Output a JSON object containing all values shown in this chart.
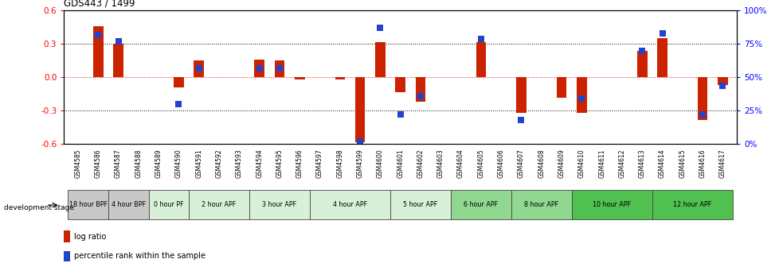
{
  "title": "GDS443 / 1499",
  "samples": [
    "GSM4585",
    "GSM4586",
    "GSM4587",
    "GSM4588",
    "GSM4589",
    "GSM4590",
    "GSM4591",
    "GSM4592",
    "GSM4593",
    "GSM4594",
    "GSM4595",
    "GSM4596",
    "GSM4597",
    "GSM4598",
    "GSM4599",
    "GSM4600",
    "GSM4601",
    "GSM4602",
    "GSM4603",
    "GSM4604",
    "GSM4605",
    "GSM4606",
    "GSM4607",
    "GSM4608",
    "GSM4609",
    "GSM4610",
    "GSM4611",
    "GSM4612",
    "GSM4613",
    "GSM4614",
    "GSM4615",
    "GSM4616",
    "GSM4617"
  ],
  "log_ratio": [
    0.0,
    0.46,
    0.3,
    0.0,
    0.0,
    -0.09,
    0.15,
    0.0,
    0.0,
    0.16,
    0.15,
    -0.02,
    0.0,
    -0.02,
    -0.58,
    0.32,
    -0.13,
    -0.22,
    0.0,
    0.0,
    0.32,
    0.0,
    -0.32,
    0.0,
    -0.18,
    -0.32,
    0.0,
    0.0,
    0.24,
    0.35,
    0.0,
    -0.38,
    -0.07
  ],
  "percentile": [
    null,
    82,
    77,
    null,
    null,
    30,
    57,
    null,
    null,
    57,
    57,
    null,
    null,
    null,
    2,
    87,
    22,
    36,
    null,
    null,
    79,
    null,
    18,
    null,
    null,
    34,
    null,
    null,
    70,
    83,
    null,
    22,
    44
  ],
  "stages": [
    {
      "label": "18 hour BPF",
      "start": 0,
      "end": 2,
      "color": "#c8c8c8"
    },
    {
      "label": "4 hour BPF",
      "start": 2,
      "end": 4,
      "color": "#c8c8c8"
    },
    {
      "label": "0 hour PF",
      "start": 4,
      "end": 6,
      "color": "#d8f0d8"
    },
    {
      "label": "2 hour APF",
      "start": 6,
      "end": 9,
      "color": "#d8f0d8"
    },
    {
      "label": "3 hour APF",
      "start": 9,
      "end": 12,
      "color": "#d8f0d8"
    },
    {
      "label": "4 hour APF",
      "start": 12,
      "end": 16,
      "color": "#d8f0d8"
    },
    {
      "label": "5 hour APF",
      "start": 16,
      "end": 19,
      "color": "#d8f0d8"
    },
    {
      "label": "6 hour APF",
      "start": 19,
      "end": 22,
      "color": "#90d890"
    },
    {
      "label": "8 hour APF",
      "start": 22,
      "end": 25,
      "color": "#90d890"
    },
    {
      "label": "10 hour APF",
      "start": 25,
      "end": 29,
      "color": "#50c050"
    },
    {
      "label": "12 hour APF",
      "start": 29,
      "end": 33,
      "color": "#50c050"
    }
  ],
  "bar_color": "#cc2200",
  "dot_color": "#2244cc",
  "ylim": [
    -0.6,
    0.6
  ],
  "yticks": [
    -0.6,
    -0.3,
    0.0,
    0.3,
    0.6
  ],
  "y2ticks": [
    0,
    25,
    50,
    75,
    100
  ],
  "y2labels": [
    "0%",
    "25%",
    "50%",
    "75%",
    "100%"
  ],
  "bar_width": 0.5,
  "dot_size": 28,
  "fig_width": 9.79,
  "fig_height": 3.36,
  "dpi": 100
}
